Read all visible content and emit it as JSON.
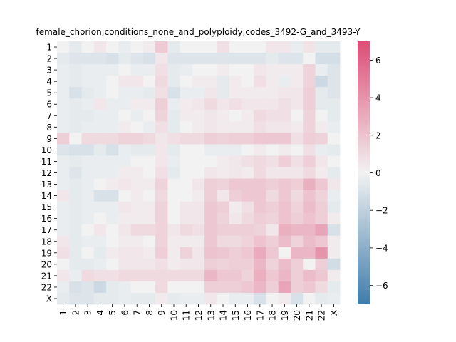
{
  "chart_data": {
    "type": "heatmap",
    "title": "female_chorion,conditions_none_and_polyploidy,codes_3492-G_and_3493-Y",
    "xlabel": "",
    "ylabel": "",
    "rows": [
      "1",
      "2",
      "3",
      "4",
      "5",
      "6",
      "7",
      "8",
      "9",
      "10",
      "11",
      "12",
      "13",
      "14",
      "15",
      "16",
      "17",
      "18",
      "19",
      "20",
      "21",
      "22",
      "X"
    ],
    "columns": [
      "1",
      "2",
      "3",
      "4",
      "5",
      "6",
      "7",
      "8",
      "9",
      "10",
      "11",
      "12",
      "13",
      "14",
      "15",
      "16",
      "17",
      "18",
      "19",
      "20",
      "21",
      "22",
      "X"
    ],
    "values": [
      [
        0.0,
        -0.5,
        0.0,
        0.5,
        0.0,
        -0.3,
        0.0,
        0.3,
        1.7,
        -0.5,
        0.0,
        0.0,
        0.0,
        0.8,
        0.0,
        0.0,
        0.0,
        0.5,
        0.5,
        -0.3,
        0.6,
        -0.5,
        -0.5
      ],
      [
        -0.5,
        -0.8,
        -0.8,
        -0.8,
        -1.0,
        -0.5,
        -0.8,
        -1.0,
        0.5,
        -0.8,
        -0.8,
        -0.8,
        -0.8,
        -0.8,
        -0.8,
        -0.8,
        -0.8,
        -0.5,
        -0.8,
        -0.8,
        0.0,
        -1.2,
        -1.2
      ],
      [
        -0.3,
        -0.5,
        -0.3,
        -0.3,
        -0.3,
        0.0,
        -0.3,
        -0.3,
        0.8,
        -0.5,
        -0.3,
        0.0,
        0.0,
        0.3,
        0.0,
        0.0,
        0.5,
        0.3,
        0.3,
        0.3,
        1.3,
        -0.3,
        -0.8
      ],
      [
        -0.3,
        -0.5,
        -0.3,
        -0.3,
        0.0,
        0.5,
        0.5,
        0.0,
        1.0,
        -0.5,
        0.0,
        0.3,
        0.3,
        -0.5,
        0.3,
        0.0,
        0.8,
        0.3,
        -0.3,
        0.3,
        1.3,
        -1.5,
        -0.8
      ],
      [
        -0.3,
        -1.0,
        -0.5,
        -0.3,
        0.0,
        -0.3,
        -0.3,
        -0.5,
        0.8,
        -1.0,
        -0.3,
        -0.3,
        0.5,
        -0.5,
        0.3,
        0.3,
        0.3,
        0.3,
        0.5,
        0.5,
        1.5,
        -0.5,
        -0.8
      ],
      [
        -0.3,
        -0.5,
        -0.3,
        0.5,
        -0.3,
        -0.3,
        0.3,
        0.3,
        1.5,
        -0.3,
        0.3,
        0.5,
        1.0,
        0.5,
        0.8,
        0.5,
        0.5,
        0.5,
        0.8,
        0.5,
        1.5,
        -0.5,
        -0.5
      ],
      [
        -0.3,
        -0.5,
        -0.5,
        -0.3,
        -0.3,
        0.0,
        -0.3,
        0.0,
        1.3,
        -0.5,
        0.3,
        0.3,
        0.5,
        0.3,
        0.0,
        0.3,
        1.0,
        0.8,
        0.8,
        0.0,
        1.3,
        0.0,
        -0.5
      ],
      [
        -0.3,
        -0.5,
        -0.3,
        -0.3,
        -0.3,
        0.3,
        0.0,
        -0.3,
        0.8,
        -0.5,
        0.0,
        0.3,
        0.5,
        0.3,
        0.3,
        0.3,
        0.8,
        0.5,
        0.5,
        0.3,
        1.3,
        0.3,
        -0.3
      ],
      [
        1.5,
        0.0,
        1.0,
        1.0,
        1.0,
        1.3,
        1.3,
        1.0,
        0.5,
        0.8,
        1.0,
        1.0,
        1.5,
        1.3,
        1.5,
        1.5,
        1.8,
        1.8,
        1.8,
        0.8,
        1.5,
        1.3,
        0.0
      ],
      [
        -0.8,
        -1.0,
        -1.0,
        -0.5,
        -1.0,
        -0.3,
        -0.5,
        -0.5,
        0.5,
        -0.5,
        0.0,
        0.0,
        -0.3,
        -0.3,
        -0.3,
        0.0,
        0.3,
        0.0,
        0.3,
        0.0,
        0.8,
        -0.3,
        -0.5
      ],
      [
        -0.3,
        -0.5,
        -0.3,
        -0.3,
        -0.3,
        -0.3,
        0.0,
        0.0,
        0.5,
        -0.3,
        0.0,
        0.0,
        0.0,
        0.3,
        0.5,
        0.8,
        1.0,
        0.8,
        1.5,
        0.8,
        1.5,
        0.5,
        0.0
      ],
      [
        -0.3,
        -0.8,
        -0.3,
        -0.3,
        -0.3,
        0.3,
        0.3,
        0.0,
        0.8,
        -0.5,
        0.0,
        0.0,
        0.5,
        0.3,
        0.5,
        0.3,
        1.0,
        0.5,
        0.5,
        0.5,
        1.0,
        0.3,
        -0.5
      ],
      [
        -0.3,
        -0.5,
        -0.3,
        0.0,
        0.3,
        0.5,
        0.3,
        0.3,
        1.3,
        0.0,
        0.0,
        0.5,
        1.5,
        1.3,
        1.8,
        1.8,
        1.8,
        1.5,
        1.8,
        1.5,
        2.8,
        1.8,
        0.5
      ],
      [
        0.5,
        -0.5,
        -0.3,
        -1.0,
        -1.0,
        0.0,
        0.3,
        0.0,
        1.0,
        0.0,
        0.0,
        0.3,
        1.5,
        0.5,
        1.5,
        1.8,
        1.8,
        1.0,
        1.8,
        1.0,
        2.0,
        1.3,
        -0.3
      ],
      [
        -0.3,
        -0.5,
        -0.3,
        -0.3,
        -0.3,
        0.5,
        0.3,
        0.3,
        1.3,
        0.0,
        0.5,
        0.5,
        1.8,
        1.5,
        0.3,
        0.8,
        1.8,
        1.5,
        2.0,
        1.3,
        2.3,
        1.5,
        -0.5
      ],
      [
        -0.3,
        -0.5,
        -0.3,
        0.0,
        -0.3,
        0.3,
        0.3,
        0.3,
        1.3,
        0.0,
        0.5,
        0.5,
        1.8,
        1.3,
        0.5,
        1.0,
        1.5,
        1.3,
        2.0,
        1.5,
        2.0,
        1.5,
        0.3
      ],
      [
        -0.3,
        -0.5,
        0.0,
        0.5,
        0.0,
        0.5,
        1.0,
        1.0,
        1.3,
        0.5,
        1.0,
        0.8,
        1.8,
        1.5,
        1.5,
        1.5,
        1.3,
        0.5,
        2.8,
        2.5,
        2.5,
        3.3,
        -1.0
      ],
      [
        0.5,
        -0.5,
        -0.3,
        -0.3,
        0.0,
        0.3,
        0.3,
        0.0,
        1.3,
        0.3,
        0.3,
        0.3,
        1.8,
        1.0,
        1.0,
        1.3,
        2.0,
        1.5,
        2.3,
        1.3,
        2.3,
        1.8,
        0.3
      ],
      [
        0.8,
        -0.5,
        0.0,
        -0.5,
        0.3,
        0.5,
        0.5,
        0.3,
        1.5,
        0.3,
        1.3,
        0.5,
        2.0,
        1.8,
        1.5,
        1.8,
        3.0,
        1.8,
        0.0,
        2.5,
        2.5,
        4.0,
        0.3
      ],
      [
        0.0,
        -0.5,
        -0.5,
        -0.3,
        0.0,
        0.5,
        0.5,
        0.5,
        0.8,
        0.3,
        0.5,
        0.5,
        1.5,
        1.3,
        1.5,
        1.5,
        2.5,
        1.3,
        2.3,
        1.5,
        0.0,
        1.5,
        -1.3
      ],
      [
        0.5,
        -0.3,
        1.0,
        0.8,
        0.8,
        1.0,
        1.0,
        1.0,
        1.0,
        1.0,
        1.0,
        1.0,
        2.5,
        1.8,
        1.8,
        1.3,
        2.8,
        1.8,
        2.5,
        1.5,
        2.3,
        1.8,
        0.3
      ],
      [
        -0.3,
        -1.0,
        -0.8,
        -1.5,
        -0.5,
        -0.3,
        0.0,
        0.0,
        1.0,
        0.0,
        0.0,
        0.0,
        1.5,
        1.5,
        1.5,
        1.8,
        2.5,
        1.5,
        3.3,
        1.5,
        1.8,
        1.0,
        -0.5
      ],
      [
        -0.5,
        -0.8,
        -0.8,
        -0.5,
        -0.5,
        -0.3,
        -0.5,
        -0.5,
        0.3,
        -0.5,
        -0.3,
        -0.3,
        0.5,
        0.0,
        -0.3,
        -0.3,
        -1.0,
        0.0,
        0.3,
        -1.0,
        0.0,
        -0.5,
        -0.3
      ]
    ],
    "colorbar": {
      "min": -7,
      "max": 7,
      "ticks": [
        -6,
        -4,
        -2,
        0,
        2,
        4,
        6
      ],
      "colors": {
        "negative": "#3f7caa",
        "center": "#f2f2f2",
        "positive": "#dd4d76"
      }
    },
    "grid": false
  }
}
